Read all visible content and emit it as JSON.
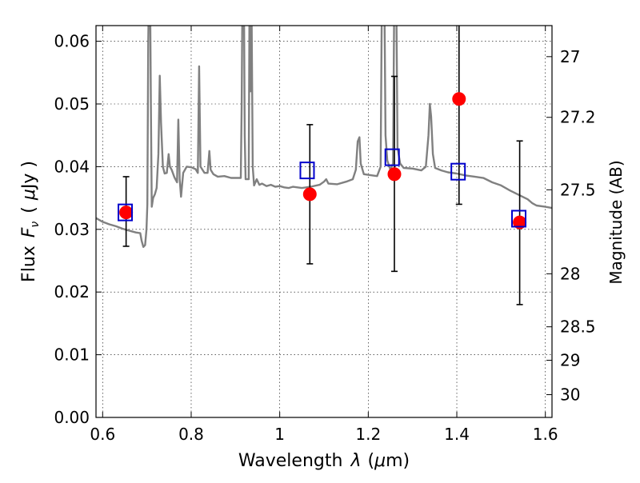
{
  "chart_data": {
    "type": "scatter",
    "xlabel_text": "Wavelength",
    "xlabel_symbol": "λ",
    "xlabel_unit_pre": "(",
    "xlabel_unit_mu": "μ",
    "xlabel_unit_post": "m)",
    "ylabel_text": "Flux",
    "ylabel_symbol_F": "F",
    "ylabel_symbol_nu": "ν",
    "ylabel_unit_pre": "(",
    "ylabel_unit_mu": "μ",
    "ylabel_unit_post": "Jy )",
    "y2label": "Magnitude (AB)",
    "xlim": [
      0.585,
      1.615
    ],
    "ylim": [
      0.0,
      0.0625
    ],
    "grid": true,
    "x_ticks": [
      {
        "value": 0.6,
        "label": "0.6"
      },
      {
        "value": 0.8,
        "label": "0.8"
      },
      {
        "value": 1.0,
        "label": "1"
      },
      {
        "value": 1.2,
        "label": "1.2"
      },
      {
        "value": 1.4,
        "label": "1.4"
      },
      {
        "value": 1.6,
        "label": "1.6"
      }
    ],
    "y_ticks": [
      {
        "value": 0.0,
        "label": "0.00"
      },
      {
        "value": 0.01,
        "label": "0.01"
      },
      {
        "value": 0.02,
        "label": "0.02"
      },
      {
        "value": 0.03,
        "label": "0.03"
      },
      {
        "value": 0.04,
        "label": "0.04"
      },
      {
        "value": 0.05,
        "label": "0.05"
      },
      {
        "value": 0.06,
        "label": "0.06"
      }
    ],
    "y2_ticks": [
      {
        "value": 27.0,
        "label": "27"
      },
      {
        "value": 27.2,
        "label": "27.2"
      },
      {
        "value": 27.5,
        "label": "27.5"
      },
      {
        "value": 28.0,
        "label": "28"
      },
      {
        "value": 28.5,
        "label": "28.5"
      },
      {
        "value": 29.0,
        "label": "29"
      },
      {
        "value": 30.0,
        "label": "30"
      }
    ],
    "series": [
      {
        "kind": "line",
        "color": "#808080",
        "points": [
          [
            0.585,
            0.0318
          ],
          [
            0.6,
            0.0312
          ],
          [
            0.615,
            0.0308
          ],
          [
            0.63,
            0.0305
          ],
          [
            0.645,
            0.0301
          ],
          [
            0.655,
            0.0299
          ],
          [
            0.665,
            0.0297
          ],
          [
            0.675,
            0.0295
          ],
          [
            0.685,
            0.0294
          ],
          [
            0.688,
            0.0282
          ],
          [
            0.692,
            0.0272
          ],
          [
            0.696,
            0.0275
          ],
          [
            0.699,
            0.03
          ],
          [
            0.701,
            0.034
          ],
          [
            0.703,
            0.06
          ],
          [
            0.705,
            0.07
          ],
          [
            0.707,
            0.07
          ],
          [
            0.709,
            0.05
          ],
          [
            0.711,
            0.0336
          ],
          [
            0.714,
            0.035
          ],
          [
            0.718,
            0.0356
          ],
          [
            0.722,
            0.0366
          ],
          [
            0.726,
            0.042
          ],
          [
            0.729,
            0.0545
          ],
          [
            0.732,
            0.047
          ],
          [
            0.736,
            0.04
          ],
          [
            0.74,
            0.0389
          ],
          [
            0.745,
            0.039
          ],
          [
            0.749,
            0.042
          ],
          [
            0.752,
            0.04
          ],
          [
            0.756,
            0.0395
          ],
          [
            0.762,
            0.0383
          ],
          [
            0.768,
            0.0375
          ],
          [
            0.771,
            0.0475
          ],
          [
            0.774,
            0.038
          ],
          [
            0.777,
            0.0352
          ],
          [
            0.782,
            0.039
          ],
          [
            0.79,
            0.04
          ],
          [
            0.8,
            0.0399
          ],
          [
            0.81,
            0.0396
          ],
          [
            0.815,
            0.039
          ],
          [
            0.818,
            0.056
          ],
          [
            0.821,
            0.04
          ],
          [
            0.83,
            0.039
          ],
          [
            0.837,
            0.039
          ],
          [
            0.841,
            0.0425
          ],
          [
            0.844,
            0.0395
          ],
          [
            0.85,
            0.0388
          ],
          [
            0.86,
            0.0384
          ],
          [
            0.875,
            0.0385
          ],
          [
            0.89,
            0.0382
          ],
          [
            0.905,
            0.0382
          ],
          [
            0.912,
            0.0382
          ],
          [
            0.914,
            0.05
          ],
          [
            0.916,
            0.07
          ],
          [
            0.919,
            0.07
          ],
          [
            0.921,
            0.045
          ],
          [
            0.923,
            0.038
          ],
          [
            0.93,
            0.038
          ],
          [
            0.932,
            0.07
          ],
          [
            0.934,
            0.052
          ],
          [
            0.936,
            0.07
          ],
          [
            0.939,
            0.04
          ],
          [
            0.942,
            0.037
          ],
          [
            0.948,
            0.038
          ],
          [
            0.954,
            0.0371
          ],
          [
            0.96,
            0.0373
          ],
          [
            0.97,
            0.0369
          ],
          [
            0.98,
            0.0371
          ],
          [
            0.99,
            0.0368
          ],
          [
            1.0,
            0.0369
          ],
          [
            1.01,
            0.0367
          ],
          [
            1.02,
            0.0366
          ],
          [
            1.03,
            0.0368
          ],
          [
            1.05,
            0.0366
          ],
          [
            1.07,
            0.0368
          ],
          [
            1.09,
            0.0371
          ],
          [
            1.1,
            0.0376
          ],
          [
            1.105,
            0.038
          ],
          [
            1.11,
            0.0373
          ],
          [
            1.13,
            0.0372
          ],
          [
            1.15,
            0.0376
          ],
          [
            1.165,
            0.038
          ],
          [
            1.172,
            0.0395
          ],
          [
            1.176,
            0.044
          ],
          [
            1.18,
            0.0447
          ],
          [
            1.183,
            0.0405
          ],
          [
            1.19,
            0.0388
          ],
          [
            1.21,
            0.0386
          ],
          [
            1.22,
            0.0385
          ],
          [
            1.228,
            0.04
          ],
          [
            1.231,
            0.07
          ],
          [
            1.236,
            0.07
          ],
          [
            1.239,
            0.045
          ],
          [
            1.243,
            0.041
          ],
          [
            1.25,
            0.0395
          ],
          [
            1.256,
            0.0405
          ],
          [
            1.259,
            0.07
          ],
          [
            1.263,
            0.07
          ],
          [
            1.266,
            0.043
          ],
          [
            1.272,
            0.0405
          ],
          [
            1.28,
            0.0398
          ],
          [
            1.3,
            0.0397
          ],
          [
            1.32,
            0.0394
          ],
          [
            1.33,
            0.04
          ],
          [
            1.336,
            0.045
          ],
          [
            1.339,
            0.05
          ],
          [
            1.342,
            0.048
          ],
          [
            1.346,
            0.042
          ],
          [
            1.351,
            0.0398
          ],
          [
            1.365,
            0.0394
          ],
          [
            1.38,
            0.0391
          ],
          [
            1.4,
            0.0389
          ],
          [
            1.42,
            0.0386
          ],
          [
            1.44,
            0.0384
          ],
          [
            1.46,
            0.0382
          ],
          [
            1.48,
            0.0375
          ],
          [
            1.5,
            0.037
          ],
          [
            1.52,
            0.0362
          ],
          [
            1.54,
            0.0355
          ],
          [
            1.56,
            0.0348
          ],
          [
            1.57,
            0.0342
          ],
          [
            1.58,
            0.0338
          ],
          [
            1.6,
            0.0336
          ],
          [
            1.615,
            0.0334
          ]
        ]
      },
      {
        "kind": "points",
        "marker": "circle",
        "color": "#ff0000",
        "points": [
          {
            "x": 0.653,
            "y": 0.0327,
            "err": [
              0.0273,
              0.0384
            ]
          },
          {
            "x": 1.068,
            "y": 0.0356,
            "err": [
              0.0245,
              0.0467
            ]
          },
          {
            "x": 1.259,
            "y": 0.0388,
            "err": [
              0.0233,
              0.0544
            ]
          },
          {
            "x": 1.405,
            "y": 0.0508,
            "err": [
              0.034,
              0.063
            ]
          },
          {
            "x": 1.542,
            "y": 0.0311,
            "err": [
              0.018,
              0.0441
            ]
          }
        ]
      },
      {
        "kind": "points",
        "marker": "square-open",
        "color": "#0000cc",
        "points": [
          {
            "x": 0.651,
            "y": 0.0327
          },
          {
            "x": 1.062,
            "y": 0.0394
          },
          {
            "x": 1.254,
            "y": 0.0415
          },
          {
            "x": 1.403,
            "y": 0.0392
          },
          {
            "x": 1.54,
            "y": 0.0317
          }
        ]
      }
    ]
  }
}
